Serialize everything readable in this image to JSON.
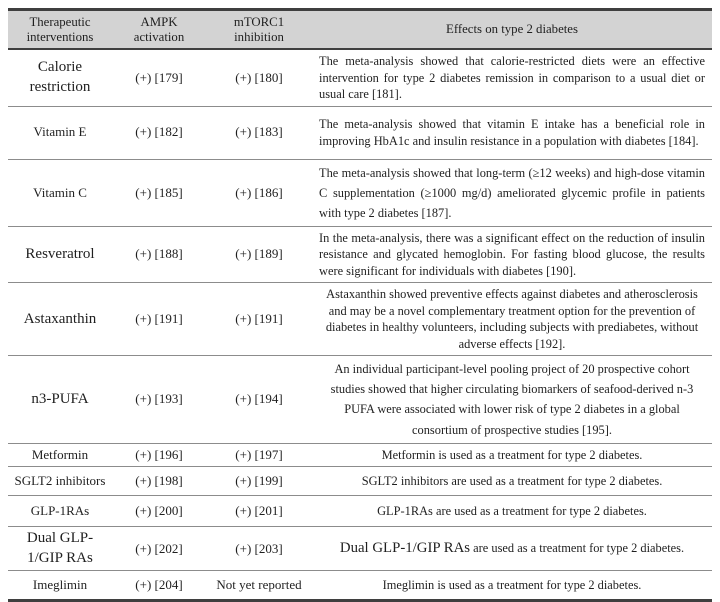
{
  "table": {
    "columns": [
      "Therapeutic interventions",
      "AMPK activation",
      "mTORC1 inhibition",
      "Effects on type 2 diabetes"
    ],
    "rows": [
      {
        "intervention": "Calorie restriction",
        "ampk_activation": "(+) [179]",
        "mtorc1_inhibition": "(+) [180]",
        "effect": "The meta-analysis showed that calorie-restricted diets were an effective intervention for type 2 diabetes remission in comparison to a usual diet or usual care [181].",
        "label_large": true,
        "effect_align": "justify",
        "effect_wide": false
      },
      {
        "intervention": "Vitamin E",
        "ampk_activation": "(+) [182]",
        "mtorc1_inhibition": "(+) [183]",
        "effect": "The meta-analysis showed that vitamin E intake has a beneficial role in improving HbA1c and insulin resistance in a population with diabetes [184].",
        "label_large": false,
        "effect_align": "justify",
        "effect_wide": false
      },
      {
        "intervention": "Vitamin C",
        "ampk_activation": "(+) [185]",
        "mtorc1_inhibition": "(+) [186]",
        "effect": "The meta-analysis showed that long-term (≥12 weeks) and high-dose vitamin C supplementation (≥1000 mg/d) ameliorated glycemic profile in patients with type 2 diabetes [187].",
        "label_large": false,
        "effect_align": "justify",
        "effect_wide": true
      },
      {
        "intervention": "Resveratrol",
        "ampk_activation": "(+) [188]",
        "mtorc1_inhibition": "(+) [189]",
        "effect": "In the meta-analysis, there was a significant effect on the reduction of insulin resistance and glycated hemoglobin. For fasting blood glucose, the results were significant for individuals with diabetes [190].",
        "label_large": true,
        "effect_align": "justify",
        "effect_wide": false
      },
      {
        "intervention": "Astaxanthin",
        "ampk_activation": "(+) [191]",
        "mtorc1_inhibition": "(+) [191]",
        "effect": "Astaxanthin showed preventive effects against diabetes and atherosclerosis and may be a novel complementary treatment option for the prevention of diabetes in healthy volunteers, including subjects with prediabetes, without adverse effects [192].",
        "label_large": true,
        "effect_align": "center",
        "effect_wide": false
      },
      {
        "intervention": "n3-PUFA",
        "ampk_activation": "(+) [193]",
        "mtorc1_inhibition": "(+) [194]",
        "effect": "An individual participant-level pooling project of 20 prospective cohort studies showed that higher circulating biomarkers of seafood-derived n-3 PUFA were associated with lower risk of type 2 diabetes in a global consortium of prospective studies [195].",
        "label_large": true,
        "effect_align": "center",
        "effect_wide": true
      },
      {
        "intervention": "Metformin",
        "ampk_activation": "(+) [196]",
        "mtorc1_inhibition": "(+) [197]",
        "effect": "Metformin is used as a treatment for type 2 diabetes.",
        "label_large": false,
        "effect_align": "center",
        "effect_wide": false
      },
      {
        "intervention": "SGLT2 inhibitors",
        "ampk_activation": "(+) [198]",
        "mtorc1_inhibition": "(+) [199]",
        "effect": "SGLT2 inhibitors are used as a treatment for type 2 diabetes.",
        "label_large": false,
        "effect_align": "center",
        "effect_wide": false
      },
      {
        "intervention": "GLP-1RAs",
        "ampk_activation": "(+) [200]",
        "mtorc1_inhibition": "(+) [201]",
        "effect": "GLP-1RAs are used as a treatment for type 2 diabetes.",
        "label_large": false,
        "effect_align": "center",
        "effect_wide": false
      },
      {
        "intervention": "Dual GLP-1/GIP RAs",
        "ampk_activation": "(+) [202]",
        "mtorc1_inhibition": "(+) [203]",
        "effect_segments": [
          {
            "text": "Dual GLP-1/GIP RAs",
            "large": true
          },
          {
            "text": " are used as a treatment for type 2 diabetes.",
            "large": false
          }
        ],
        "label_large": true,
        "effect_align": "center",
        "effect_wide": false
      },
      {
        "intervention": "Imeglimin",
        "ampk_activation": "(+) [204]",
        "mtorc1_inhibition": "Not yet reported",
        "effect": "Imeglimin is used as a treatment for type 2 diabetes.",
        "label_large": false,
        "effect_align": "center",
        "effect_wide": false
      }
    ]
  }
}
